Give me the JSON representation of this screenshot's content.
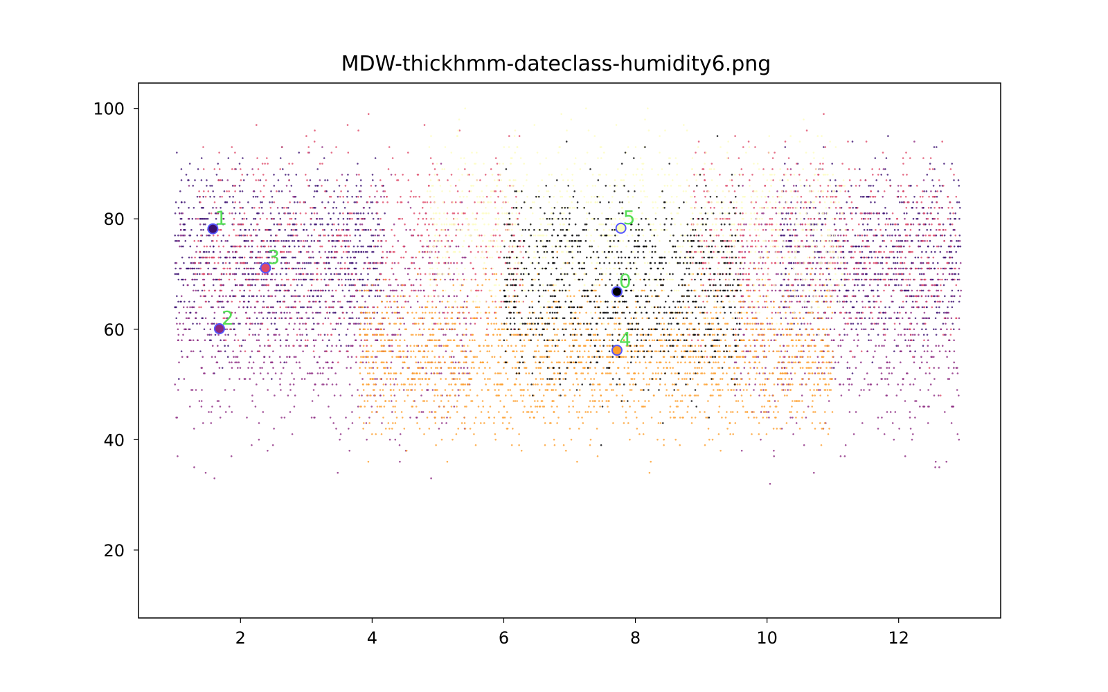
{
  "chart_data": {
    "type": "scatter",
    "title": "MDW-thickhmm-dateclass-humidity6.png",
    "xlabel": "",
    "ylabel": "",
    "xlim": [
      0.45,
      13.55
    ],
    "ylim": [
      7.7,
      104.6
    ],
    "x_ticks": [
      2,
      4,
      6,
      8,
      10,
      12
    ],
    "y_ticks": [
      20,
      40,
      60,
      80,
      100
    ],
    "grid": false,
    "legend": "none",
    "colors": {
      "class_0": "#000004",
      "class_1": "#3b0f70",
      "class_2": "#8c2981",
      "class_3": "#de4968",
      "class_4": "#fe9f2d",
      "class_5": "#fcfdbf",
      "centroid_edge": "#5555ff",
      "centroid_label": "#55dd55"
    },
    "background_points": {
      "x_range": [
        1.0,
        12.95
      ],
      "y_range": [
        12,
        100
      ],
      "distribution": "dense dotted scatter of daily observations colored by HMM class; classes 1-3 (purple/red) dominate early and late months, class 4 (orange) dominates months 4-10 at humidity 40-65, class 0 (black) and class 5 (pale yellow) dominate months 6-9 at humidity 55-90"
    },
    "centroids": [
      {
        "label": "0",
        "x": 7.72,
        "y": 66.8,
        "fill": "#000004"
      },
      {
        "label": "1",
        "x": 1.58,
        "y": 78.2,
        "fill": "#3b0f70"
      },
      {
        "label": "2",
        "x": 1.68,
        "y": 60.1,
        "fill": "#8c2981"
      },
      {
        "label": "3",
        "x": 2.38,
        "y": 71.1,
        "fill": "#de4968"
      },
      {
        "label": "4",
        "x": 7.72,
        "y": 56.2,
        "fill": "#fe9f2d"
      },
      {
        "label": "5",
        "x": 7.78,
        "y": 78.3,
        "fill": "#fcfdbf"
      }
    ]
  }
}
